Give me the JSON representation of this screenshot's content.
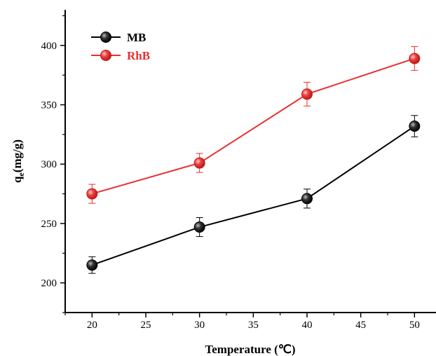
{
  "chart_data": {
    "type": "line",
    "xlabel": "Temperature (℃)",
    "ylabel_main": "q",
    "ylabel_sub": "e",
    "ylabel_unit": "(mg/g)",
    "xlim": [
      17.5,
      52.0
    ],
    "ylim": [
      175,
      430
    ],
    "x_ticks": [
      20,
      25,
      30,
      35,
      40,
      45,
      50
    ],
    "y_ticks": [
      200,
      250,
      300,
      350,
      400
    ],
    "legend_position": "top-left",
    "grid": false,
    "x": [
      20,
      30,
      40,
      50
    ],
    "series": [
      {
        "name": "MB",
        "color": "#000000",
        "marker_fill": "#2a2a2a",
        "values": [
          215,
          247,
          271,
          332
        ],
        "errors": [
          7,
          8,
          8,
          9
        ]
      },
      {
        "name": "RhB",
        "color": "#e8302f",
        "marker_fill": "#e8302f",
        "values": [
          275,
          301,
          359,
          389
        ],
        "errors": [
          8,
          8,
          10,
          10
        ]
      }
    ]
  }
}
